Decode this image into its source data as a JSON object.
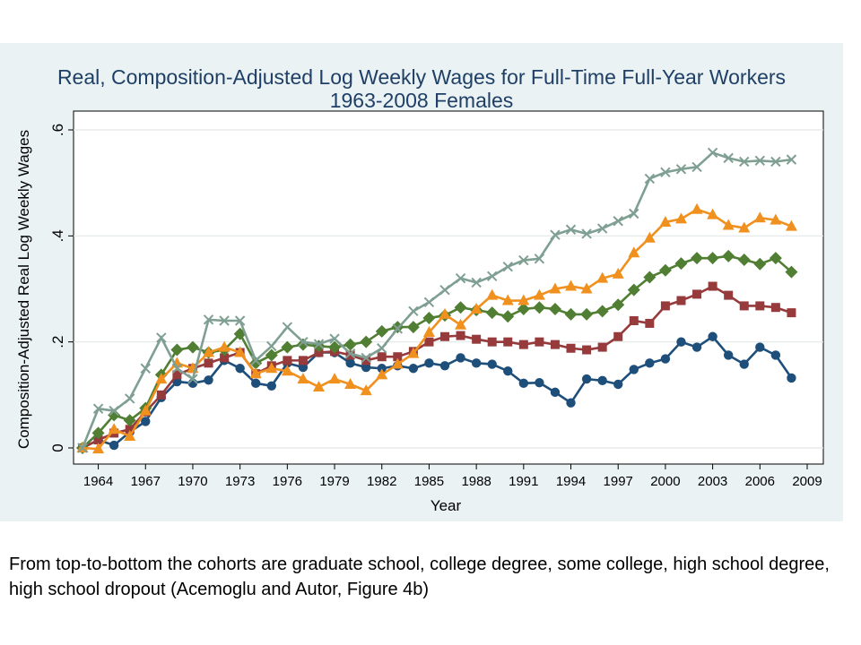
{
  "chart_data": {
    "type": "line",
    "title": "Real, Composition-Adjusted Log Weekly Wages for Full-Time Full-Year Workers",
    "subtitle": "1963-2008 Females",
    "xlabel": "Year",
    "ylabel": "Composition-Adjusted Real Log Weekly Wages",
    "xlim": [
      1962,
      2009.5
    ],
    "ylim": [
      -0.01,
      0.61
    ],
    "x_ticks": [
      1964,
      1967,
      1970,
      1973,
      1976,
      1979,
      1982,
      1985,
      1988,
      1991,
      1994,
      1997,
      2000,
      2003,
      2006,
      2009
    ],
    "x_tick_labels": [
      "1964",
      "1967",
      "1970",
      "1973",
      "1976",
      "1979",
      "1982",
      "1985",
      "1988",
      "1991",
      "1994",
      "1997",
      "2000",
      "2003",
      "2006",
      "2009"
    ],
    "y_ticks": [
      0,
      0.2,
      0.4,
      0.6
    ],
    "y_tick_labels": [
      "0",
      ".2",
      ".4",
      ".6"
    ],
    "grid": true,
    "x": [
      1963,
      1964,
      1965,
      1966,
      1967,
      1968,
      1969,
      1970,
      1971,
      1972,
      1973,
      1974,
      1975,
      1976,
      1977,
      1978,
      1979,
      1980,
      1981,
      1982,
      1983,
      1984,
      1985,
      1986,
      1987,
      1988,
      1989,
      1990,
      1991,
      1992,
      1993,
      1994,
      1995,
      1996,
      1997,
      1998,
      1999,
      2000,
      2001,
      2002,
      2003,
      2004,
      2005,
      2006,
      2007,
      2008
    ],
    "series": [
      {
        "color": "#7f9f93",
        "marker": "x",
        "values": [
          0.0,
          0.074,
          0.07,
          0.093,
          0.15,
          0.208,
          0.15,
          0.13,
          0.242,
          0.24,
          0.24,
          0.165,
          0.192,
          0.228,
          0.2,
          0.196,
          0.206,
          0.178,
          0.17,
          0.188,
          0.225,
          0.258,
          0.275,
          0.298,
          0.32,
          0.312,
          0.324,
          0.342,
          0.354,
          0.357,
          0.402,
          0.412,
          0.404,
          0.414,
          0.428,
          0.442,
          0.508,
          0.52,
          0.526,
          0.53,
          0.557,
          0.547,
          0.54,
          0.542,
          0.54,
          0.544
        ]
      },
      {
        "color": "#f0901e",
        "marker": "triangle",
        "values": [
          0.0,
          -0.002,
          0.035,
          0.022,
          0.07,
          0.13,
          0.16,
          0.15,
          0.18,
          0.19,
          0.18,
          0.14,
          0.15,
          0.145,
          0.13,
          0.115,
          0.13,
          0.12,
          0.108,
          0.138,
          0.158,
          0.178,
          0.218,
          0.252,
          0.232,
          0.262,
          0.288,
          0.278,
          0.278,
          0.288,
          0.3,
          0.305,
          0.3,
          0.32,
          0.328,
          0.368,
          0.396,
          0.426,
          0.432,
          0.45,
          0.44,
          0.42,
          0.415,
          0.434,
          0.43,
          0.418
        ]
      },
      {
        "color": "#507e32",
        "marker": "diamond",
        "values": [
          0.0,
          0.028,
          0.062,
          0.052,
          0.075,
          0.138,
          0.185,
          0.19,
          0.18,
          0.185,
          0.215,
          0.16,
          0.175,
          0.19,
          0.195,
          0.192,
          0.19,
          0.195,
          0.2,
          0.22,
          0.228,
          0.228,
          0.245,
          0.25,
          0.265,
          0.26,
          0.255,
          0.248,
          0.262,
          0.265,
          0.262,
          0.252,
          0.252,
          0.258,
          0.27,
          0.298,
          0.322,
          0.335,
          0.348,
          0.358,
          0.358,
          0.362,
          0.355,
          0.347,
          0.358,
          0.332
        ]
      },
      {
        "color": "#963a3c",
        "marker": "square",
        "values": [
          0.0,
          0.015,
          0.028,
          0.035,
          0.068,
          0.1,
          0.138,
          0.15,
          0.16,
          0.17,
          0.18,
          0.14,
          0.155,
          0.165,
          0.165,
          0.18,
          0.182,
          0.175,
          0.165,
          0.172,
          0.172,
          0.182,
          0.2,
          0.21,
          0.212,
          0.205,
          0.2,
          0.2,
          0.195,
          0.2,
          0.195,
          0.188,
          0.185,
          0.19,
          0.21,
          0.24,
          0.235,
          0.268,
          0.278,
          0.29,
          0.305,
          0.288,
          0.268,
          0.268,
          0.265,
          0.255
        ]
      },
      {
        "color": "#1e4e7a",
        "marker": "circle",
        "values": [
          0.0,
          0.015,
          0.005,
          0.03,
          0.05,
          0.095,
          0.125,
          0.122,
          0.128,
          0.165,
          0.15,
          0.122,
          0.117,
          0.16,
          0.152,
          0.18,
          0.18,
          0.16,
          0.152,
          0.15,
          0.155,
          0.15,
          0.16,
          0.155,
          0.17,
          0.16,
          0.158,
          0.145,
          0.122,
          0.123,
          0.105,
          0.085,
          0.13,
          0.127,
          0.12,
          0.148,
          0.16,
          0.168,
          0.2,
          0.19,
          0.21,
          0.175,
          0.158,
          0.19,
          0.175,
          0.132
        ]
      }
    ]
  },
  "caption": "From top-to-bottom the cohorts are graduate school, college degree, some college, high school degree, high school dropout (Acemoglu and Autor, Figure 4b)"
}
